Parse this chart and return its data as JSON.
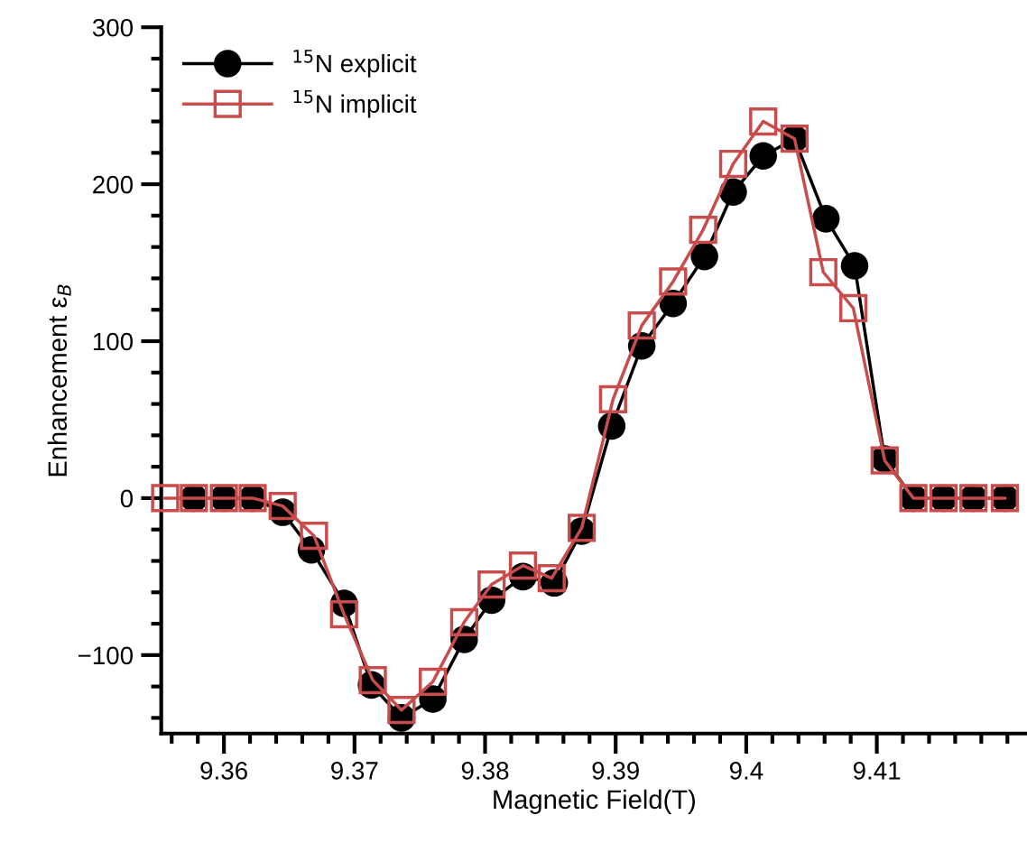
{
  "chart_data": {
    "type": "line",
    "xlabel": "Magnetic Field(T)",
    "ylabel": "Enhancement ε$_{B}$",
    "xlim": [
      9.3552,
      9.4215
    ],
    "ylim": [
      -150,
      300
    ],
    "xticks": [
      {
        "value": 9.356,
        "label": null
      },
      {
        "value": 9.358,
        "label": null
      },
      9.36,
      {
        "value": 9.362,
        "label": null
      },
      {
        "value": 9.364,
        "label": null
      },
      {
        "value": 9.366,
        "label": null
      },
      {
        "value": 9.368,
        "label": null
      },
      9.37,
      {
        "value": 9.372,
        "label": null
      },
      {
        "value": 9.374,
        "label": null
      },
      {
        "value": 9.376,
        "label": null
      },
      {
        "value": 9.378,
        "label": null
      },
      9.38,
      {
        "value": 9.382,
        "label": null
      },
      {
        "value": 9.384,
        "label": null
      },
      {
        "value": 9.386,
        "label": null
      },
      {
        "value": 9.388,
        "label": null
      },
      9.39,
      {
        "value": 9.392,
        "label": null
      },
      {
        "value": 9.394,
        "label": null
      },
      {
        "value": 9.396,
        "label": null
      },
      {
        "value": 9.398,
        "label": null
      },
      9.4,
      {
        "value": 9.402,
        "label": null
      },
      {
        "value": 9.404,
        "label": null
      },
      {
        "value": 9.406,
        "label": null
      },
      {
        "value": 9.408,
        "label": null
      },
      9.41,
      {
        "value": 9.412,
        "label": null
      },
      {
        "value": 9.414,
        "label": null
      },
      {
        "value": 9.416,
        "label": null
      },
      {
        "value": 9.418,
        "label": null
      },
      {
        "value": 9.42,
        "label": null
      }
    ],
    "yticks": [
      {
        "value": -140,
        "label": null
      },
      {
        "value": -120,
        "label": null
      },
      {
        "value": -100,
        "label": "−100"
      },
      {
        "value": -80,
        "label": null
      },
      {
        "value": -60,
        "label": null
      },
      {
        "value": -40,
        "label": null
      },
      {
        "value": -20,
        "label": null
      },
      0,
      {
        "value": 20,
        "label": null
      },
      {
        "value": 40,
        "label": null
      },
      {
        "value": 60,
        "label": null
      },
      {
        "value": 80,
        "label": null
      },
      100,
      {
        "value": 120,
        "label": null
      },
      {
        "value": 140,
        "label": null
      },
      {
        "value": 160,
        "label": null
      },
      {
        "value": 180,
        "label": null
      },
      200,
      {
        "value": 220,
        "label": null
      },
      {
        "value": 240,
        "label": null
      },
      {
        "value": 260,
        "label": null
      },
      {
        "value": 280,
        "label": null
      },
      300
    ],
    "legend": "top left",
    "grid": false,
    "line_style": "solid",
    "series": [
      {
        "name": "$^{15}$N explicit",
        "color": "#000000",
        "marker": "circle",
        "x": [
          9.3577,
          9.36,
          9.3622,
          9.3645,
          9.3667,
          9.3692,
          9.3713,
          9.3736,
          9.376,
          9.3784,
          9.3805,
          9.3829,
          9.3853,
          9.3874,
          9.3897,
          9.392,
          9.3944,
          9.3968,
          9.399,
          9.4013,
          9.4037,
          9.4061,
          9.4083,
          9.4106,
          9.4128,
          9.4151,
          9.4174,
          9.4198
        ],
        "values": [
          0,
          0,
          0,
          -9,
          -33,
          -67,
          -119,
          -140,
          -128,
          -90,
          -65,
          -50,
          -54,
          -21,
          46,
          97,
          124,
          154,
          195,
          218,
          229,
          178,
          148,
          25,
          0,
          0,
          0,
          0
        ]
      },
      {
        "name": "$^{15}$N implicit",
        "color": "#c94c4c",
        "marker": "square",
        "x": [
          9.3555,
          9.3577,
          9.36,
          9.3622,
          9.3645,
          9.3669,
          9.3692,
          9.3714,
          9.3736,
          9.376,
          9.3784,
          9.3805,
          9.3829,
          9.3851,
          9.3874,
          9.3898,
          9.392,
          9.3944,
          9.3967,
          9.399,
          9.4013,
          9.4037,
          9.4059,
          9.4082,
          9.4106,
          9.4128,
          9.4151,
          9.4174,
          9.4198
        ],
        "values": [
          0,
          0,
          0,
          0,
          -5,
          -24,
          -74,
          -116,
          -135,
          -117,
          -79,
          -55,
          -43,
          -51,
          -19,
          63,
          110,
          138,
          171,
          213,
          240,
          229,
          144,
          121,
          24,
          0,
          0,
          0,
          0
        ]
      }
    ]
  }
}
